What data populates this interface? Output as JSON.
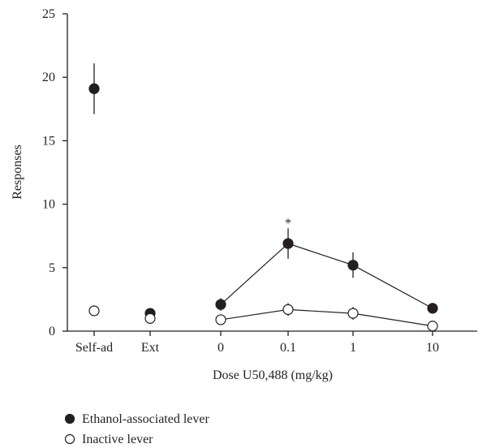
{
  "chart_data": {
    "type": "scatter",
    "xlabel": "Dose U50,488 (mg/kg)",
    "ylabel": "Responses",
    "ylim": [
      0,
      25
    ],
    "yticks": [
      0,
      5,
      10,
      15,
      20,
      25
    ],
    "categories": [
      "Self-ad",
      "Ext",
      "0",
      "0.1",
      "1",
      "10"
    ],
    "connected_categories": [
      "0",
      "0.1",
      "1",
      "10"
    ],
    "grid": false,
    "legend_position": "bottom-left",
    "series": [
      {
        "name": "Ethanol-associated lever",
        "marker": "filled-circle",
        "color": "#231f20",
        "values": [
          19.1,
          1.4,
          2.1,
          6.9,
          5.2,
          1.8
        ],
        "errors": [
          2.0,
          0.2,
          0.5,
          1.2,
          1.0,
          0.4
        ]
      },
      {
        "name": "Inactive lever",
        "marker": "open-circle",
        "color": "#231f20",
        "values": [
          1.6,
          1.0,
          0.9,
          1.7,
          1.4,
          0.4
        ],
        "errors": [
          0.2,
          0.1,
          0.2,
          0.5,
          0.5,
          0.1
        ]
      }
    ],
    "annotations": [
      {
        "text": "*",
        "category": "0.1",
        "y": 8.7
      }
    ]
  }
}
